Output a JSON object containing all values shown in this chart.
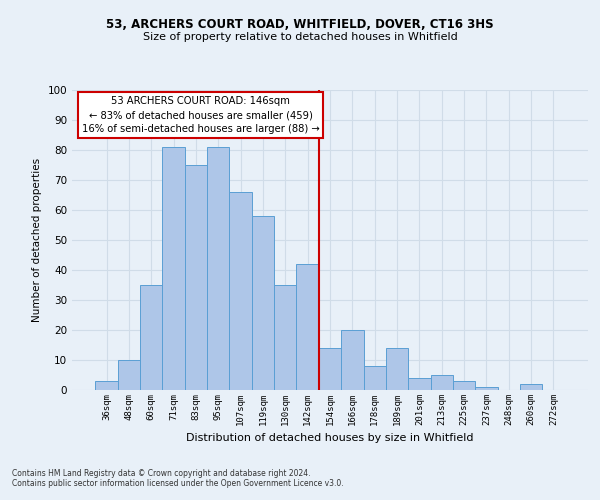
{
  "title1": "53, ARCHERS COURT ROAD, WHITFIELD, DOVER, CT16 3HS",
  "title2": "Size of property relative to detached houses in Whitfield",
  "xlabel": "Distribution of detached houses by size in Whitfield",
  "ylabel": "Number of detached properties",
  "bar_labels": [
    "36sqm",
    "48sqm",
    "60sqm",
    "71sqm",
    "83sqm",
    "95sqm",
    "107sqm",
    "119sqm",
    "130sqm",
    "142sqm",
    "154sqm",
    "166sqm",
    "178sqm",
    "189sqm",
    "201sqm",
    "213sqm",
    "225sqm",
    "237sqm",
    "248sqm",
    "260sqm",
    "272sqm"
  ],
  "bar_heights": [
    3,
    10,
    35,
    81,
    75,
    81,
    66,
    58,
    35,
    42,
    14,
    20,
    8,
    14,
    4,
    5,
    3,
    1,
    0,
    2,
    0
  ],
  "bar_color": "#aec6e8",
  "bar_edge_color": "#5a9fd4",
  "vline_x": 9.5,
  "vline_color": "#cc0000",
  "annotation_text": "53 ARCHERS COURT ROAD: 146sqm\n← 83% of detached houses are smaller (459)\n16% of semi-detached houses are larger (88) →",
  "annotation_box_color": "#ffffff",
  "annotation_box_edge_color": "#cc0000",
  "ylim": [
    0,
    100
  ],
  "yticks": [
    0,
    10,
    20,
    30,
    40,
    50,
    60,
    70,
    80,
    90,
    100
  ],
  "grid_color": "#d0dce8",
  "bg_color": "#e8f0f8",
  "footer1": "Contains HM Land Registry data © Crown copyright and database right 2024.",
  "footer2": "Contains public sector information licensed under the Open Government Licence v3.0."
}
